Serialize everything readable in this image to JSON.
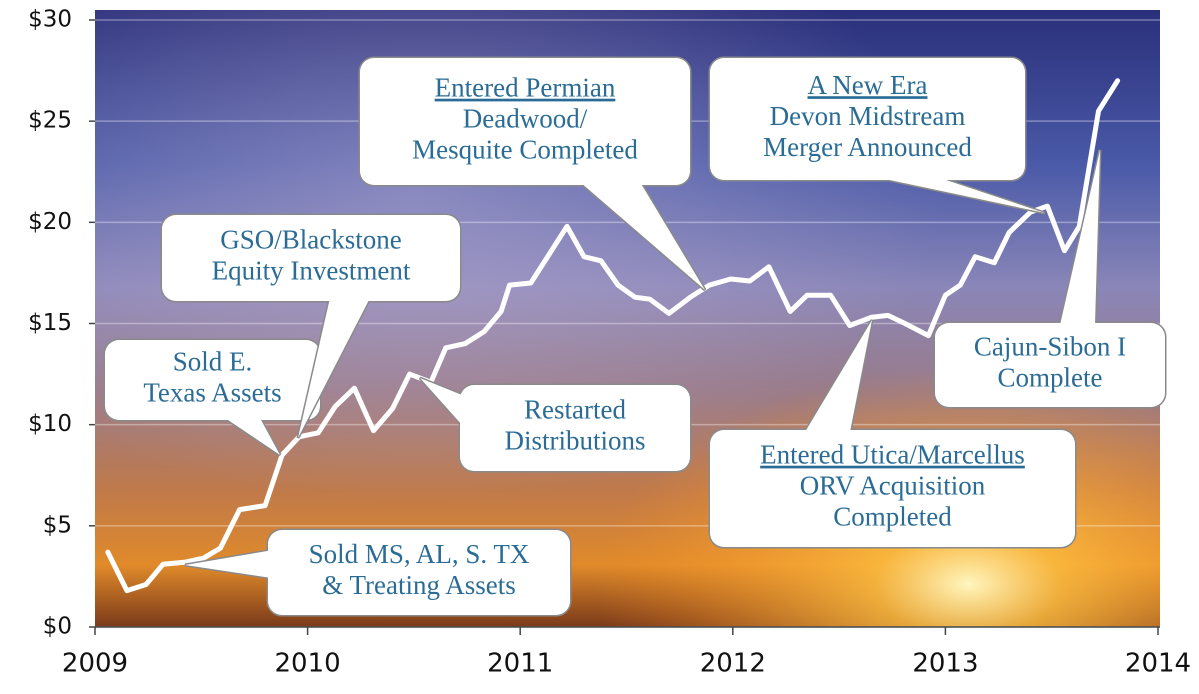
{
  "chart_data": {
    "type": "line",
    "x": [
      2009.06,
      2009.15,
      2009.24,
      2009.32,
      2009.42,
      2009.51,
      2009.59,
      2009.68,
      2009.8,
      2009.88,
      2009.96,
      2010.05,
      2010.13,
      2010.22,
      2010.31,
      2010.4,
      2010.48,
      2010.58,
      2010.65,
      2010.74,
      2010.83,
      2010.91,
      2010.95,
      2011.05,
      2011.22,
      2011.3,
      2011.38,
      2011.46,
      2011.54,
      2011.61,
      2011.7,
      2011.8,
      2011.89,
      2011.99,
      2012.08,
      2012.17,
      2012.27,
      2012.35,
      2012.46,
      2012.55,
      2012.65,
      2012.73,
      2012.81,
      2012.92,
      2013.0,
      2013.07,
      2013.14,
      2013.23,
      2013.3,
      2013.4,
      2013.48,
      2013.56,
      2013.63,
      2013.72,
      2013.81
    ],
    "values": [
      3.7,
      1.8,
      2.1,
      3.1,
      3.2,
      3.4,
      3.9,
      5.8,
      6.0,
      8.5,
      9.4,
      9.6,
      10.9,
      11.8,
      9.7,
      10.8,
      12.5,
      12.1,
      13.8,
      14.0,
      14.6,
      15.6,
      16.9,
      17.0,
      19.8,
      18.3,
      18.1,
      16.9,
      16.3,
      16.2,
      15.5,
      16.3,
      16.9,
      17.2,
      17.1,
      17.8,
      15.6,
      16.4,
      16.4,
      14.9,
      15.3,
      15.4,
      15.0,
      14.4,
      16.4,
      16.9,
      18.3,
      18.0,
      19.5,
      20.5,
      20.8,
      18.6,
      19.8,
      25.5,
      27.0
    ],
    "color": "#ffffff",
    "xlim": [
      2009,
      2014
    ],
    "xticks": [
      2009,
      2010,
      2011,
      2012,
      2013,
      2014
    ],
    "ylim": [
      0,
      30
    ],
    "yticks": [
      {
        "value": 0,
        "label": "$0"
      },
      {
        "value": 5,
        "label": "$5"
      },
      {
        "value": 10,
        "label": "$10"
      },
      {
        "value": 15,
        "label": "$15"
      },
      {
        "value": 20,
        "label": "$20"
      },
      {
        "value": 25,
        "label": "$25"
      },
      {
        "value": 30,
        "label": "$30"
      }
    ],
    "grid": true,
    "annotations": [
      {
        "lines": [
          "Sold MS, AL, S. TX",
          "& Treating Assets"
        ]
      },
      {
        "lines": [
          "Sold E.",
          "Texas Assets"
        ]
      },
      {
        "lines": [
          "GSO/Blackstone",
          "Equity Investment"
        ]
      },
      {
        "lines": [
          "Restarted",
          "Distributions"
        ]
      },
      {
        "lines": [
          "Entered Permian",
          "Deadwood/",
          "Mesquite Completed"
        ]
      },
      {
        "lines": [
          "A New Era",
          "Devon Midstream",
          "Merger Announced"
        ]
      },
      {
        "lines": [
          "Cajun-Sibon I",
          "Complete"
        ]
      },
      {
        "lines": [
          "Entered Utica/Marcellus",
          "ORV Acquisition",
          "Completed"
        ]
      }
    ]
  }
}
